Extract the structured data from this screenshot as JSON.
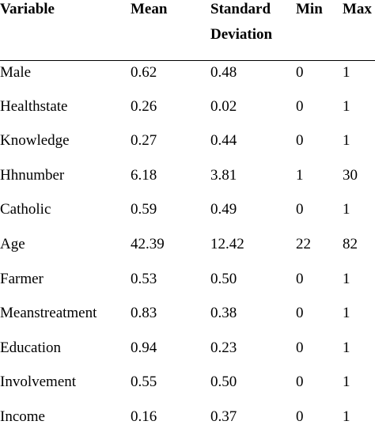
{
  "table": {
    "headers": [
      "Variable",
      "Mean",
      "Standard Deviation",
      "Min",
      "Max"
    ],
    "rows": [
      [
        "Male",
        "0.62",
        "0.48",
        "0",
        "1"
      ],
      [
        "Healthstate",
        "0.26",
        "0.02",
        "0",
        "1"
      ],
      [
        "Knowledge",
        "0.27",
        "0.44",
        "0",
        "1"
      ],
      [
        "Hhnumber",
        "6.18",
        "3.81",
        "1",
        "30"
      ],
      [
        "Catholic",
        "0.59",
        "0.49",
        "0",
        "1"
      ],
      [
        "Age",
        "42.39",
        "12.42",
        "22",
        "82"
      ],
      [
        "Farmer",
        "0.53",
        "0.50",
        "0",
        "1"
      ],
      [
        "Meanstreatment",
        "0.83",
        "0.38",
        "0",
        "1"
      ],
      [
        "Education",
        "0.94",
        "0.23",
        "0",
        "1"
      ],
      [
        "Involvement",
        "0.55",
        "0.50",
        "0",
        "1"
      ],
      [
        "Income",
        "0.16",
        "0.37",
        "0",
        "1"
      ]
    ]
  }
}
